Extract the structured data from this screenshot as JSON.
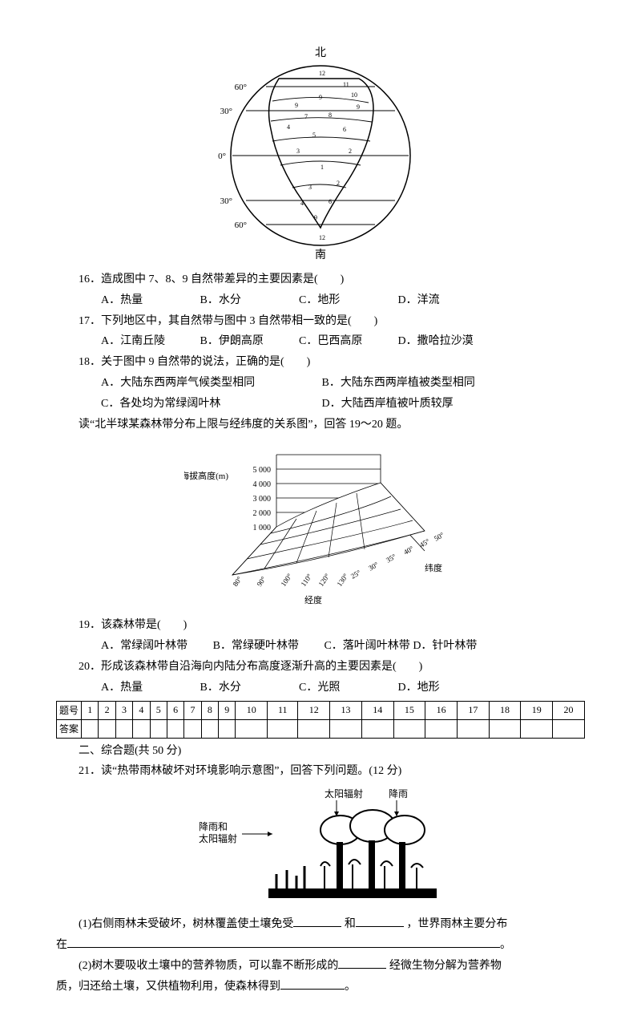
{
  "fig1": {
    "top": "北",
    "bottom": "南",
    "lat_labels_left": [
      "60°",
      "30°",
      "0°",
      "30°",
      "60°"
    ]
  },
  "q16": {
    "text": "16．造成图中 7、8、9 自然带差异的主要因素是(　　)",
    "opts": [
      "A．热量",
      "B．水分",
      "C．地形",
      "D．洋流"
    ]
  },
  "q17": {
    "text": "17．下列地区中，其自然带与图中 3 自然带相一致的是(　　)",
    "opts": [
      "A．江南丘陵",
      "B．伊朗高原",
      "C．巴西高原",
      "D．撒哈拉沙漠"
    ]
  },
  "q18": {
    "text": "18．关于图中 9 自然带的说法，正确的是(　　)",
    "optsA": "A．大陆东西两岸气候类型相同",
    "optsB": "B．大陆东西两岸植被类型相同",
    "optsC": "C．各处均为常绿阔叶林",
    "optsD": "D．大陆西岸植被叶质较厚"
  },
  "lead1": "读“北半球某森林带分布上限与经纬度的关系图”，回答 19～20 题。",
  "fig2": {
    "ylabel": "海拔高度(m)",
    "yvals": [
      "5 000",
      "4 000",
      "3 000",
      "2 000",
      "1 000"
    ],
    "xlon_label": "经度",
    "xlon": [
      "80°",
      "90°",
      "100°",
      "110°",
      "120°",
      "130°"
    ],
    "xlat_label": "纬度",
    "xlat": [
      "25°",
      "30°",
      "35°",
      "40°",
      "45°",
      "50°"
    ]
  },
  "q19": {
    "text": "19．该森林带是(　　)",
    "opts": [
      "A．常绿阔叶林带",
      "B．常绿硬叶林带",
      "C．落叶阔叶林带",
      "D．针叶林带"
    ]
  },
  "q20": {
    "text": "20．形成该森林带自沿海向内陆分布高度逐渐升高的主要因素是(　　)",
    "opts": [
      "A．热量",
      "B．水分",
      "C．光照",
      "D．地形"
    ]
  },
  "table": {
    "rowH": [
      "题号",
      "答案"
    ],
    "cols": [
      "1",
      "2",
      "3",
      "4",
      "5",
      "6",
      "7",
      "8",
      "9",
      "10",
      "11",
      "12",
      "13",
      "14",
      "15",
      "16",
      "17",
      "18",
      "19",
      "20"
    ]
  },
  "sec2": "二、综合题(共 50 分)",
  "q21": "21．读“热带雨林破坏对环境影响示意图”，回答下列问题。(12 分)",
  "fig3": {
    "left": "降雨和\n太阳辐射",
    "sun": "太阳辐射",
    "rain": "降雨"
  },
  "q21_1a": "(1)右侧雨林未受破坏，树林覆盖使土壤免受",
  "q21_1b": "和",
  "q21_1c": "，世界雨林主要分布",
  "q21_1d": "在",
  "q21_1e": "。",
  "q21_2a": "(2)树木要吸收土壤中的营养物质，可以靠不断形成的",
  "q21_2b": "经微生物分解为营养物",
  "q21_2c": "质，归还给土壤，又供植物利用，使森林得到",
  "q21_2d": "。"
}
